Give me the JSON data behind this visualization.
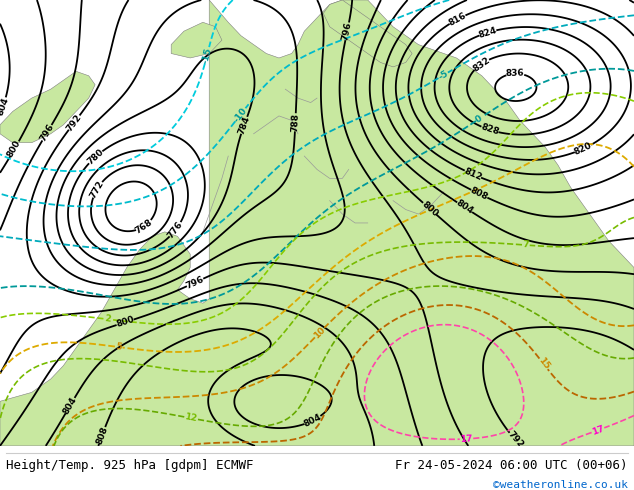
{
  "title_left": "Height/Temp. 925 hPa [gdpm] ECMWF",
  "title_right": "Fr 24-05-2024 06:00 UTC (00+06)",
  "credit": "©weatheronline.co.uk",
  "credit_color": "#0066cc",
  "bg_color": "#ffffff",
  "footer_text_color": "#000000",
  "fig_width": 6.34,
  "fig_height": 4.9,
  "footer_fontsize": 9,
  "credit_fontsize": 8
}
